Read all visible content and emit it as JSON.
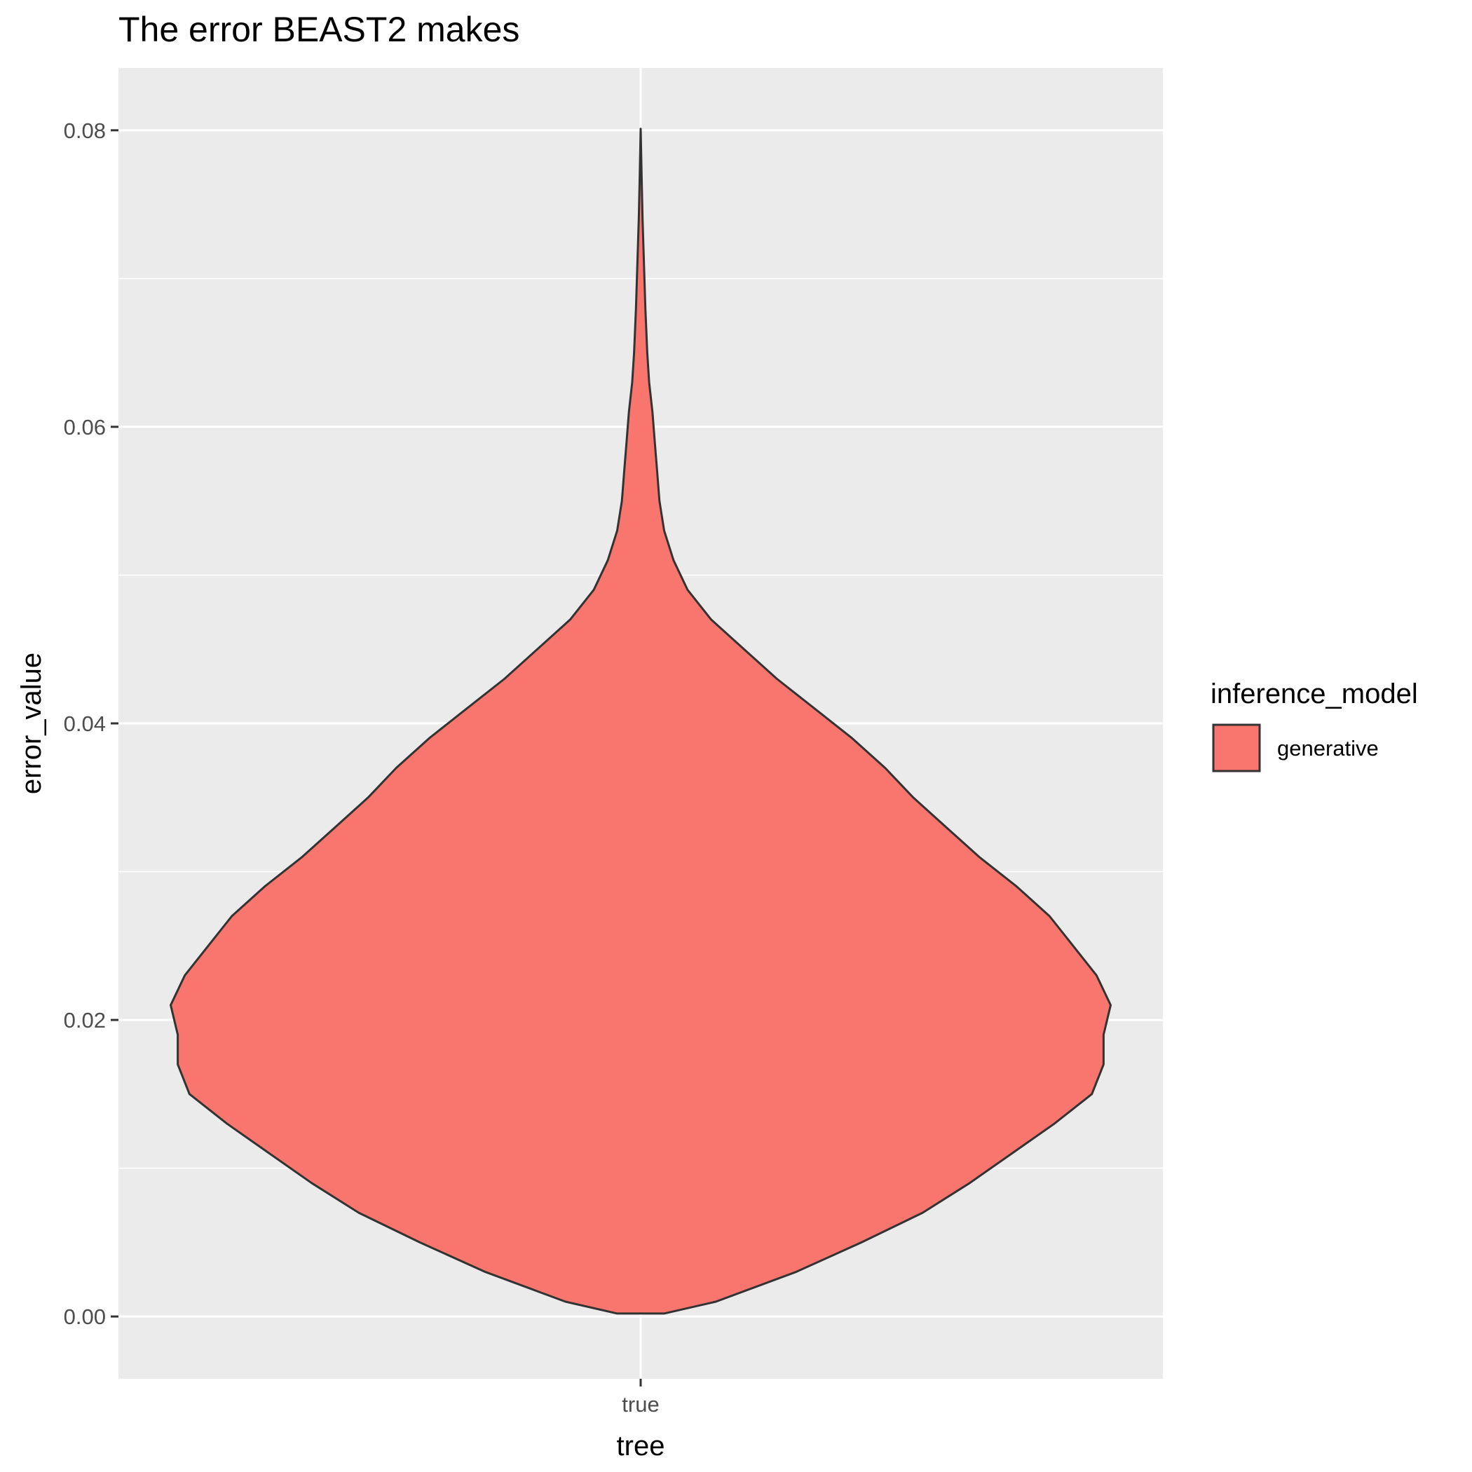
{
  "chart_data": {
    "type": "violin",
    "title": "The error BEAST2 makes",
    "xlabel": "tree",
    "ylabel": "error_value",
    "categories": [
      "true"
    ],
    "ylim": [
      -0.0042,
      0.0842
    ],
    "y_ticks": [
      0.0,
      0.02,
      0.04,
      0.06,
      0.08
    ],
    "y_tick_labels": [
      "0.00",
      "0.02",
      "0.04",
      "0.06",
      "0.08"
    ],
    "grid": true,
    "legend": {
      "title": "inference_model",
      "position": "right",
      "entries": [
        {
          "label": "generative",
          "color": "#F8766D"
        }
      ]
    },
    "series": [
      {
        "name": "generative",
        "category": "true",
        "color": "#F8766D",
        "y_min": 0.0002,
        "y_max": 0.0801,
        "density_profile": [
          {
            "y": 0.0002,
            "w": 0.05
          },
          {
            "y": 0.001,
            "w": 0.16
          },
          {
            "y": 0.003,
            "w": 0.33
          },
          {
            "y": 0.005,
            "w": 0.47
          },
          {
            "y": 0.007,
            "w": 0.6
          },
          {
            "y": 0.009,
            "w": 0.7
          },
          {
            "y": 0.011,
            "w": 0.79
          },
          {
            "y": 0.013,
            "w": 0.88
          },
          {
            "y": 0.015,
            "w": 0.96
          },
          {
            "y": 0.017,
            "w": 0.985
          },
          {
            "y": 0.019,
            "w": 0.985
          },
          {
            "y": 0.021,
            "w": 1.0
          },
          {
            "y": 0.023,
            "w": 0.97
          },
          {
            "y": 0.025,
            "w": 0.92
          },
          {
            "y": 0.027,
            "w": 0.87
          },
          {
            "y": 0.029,
            "w": 0.8
          },
          {
            "y": 0.031,
            "w": 0.72
          },
          {
            "y": 0.033,
            "w": 0.65
          },
          {
            "y": 0.035,
            "w": 0.58
          },
          {
            "y": 0.037,
            "w": 0.52
          },
          {
            "y": 0.039,
            "w": 0.45
          },
          {
            "y": 0.041,
            "w": 0.37
          },
          {
            "y": 0.043,
            "w": 0.29
          },
          {
            "y": 0.045,
            "w": 0.22
          },
          {
            "y": 0.047,
            "w": 0.15
          },
          {
            "y": 0.049,
            "w": 0.1
          },
          {
            "y": 0.051,
            "w": 0.07
          },
          {
            "y": 0.053,
            "w": 0.05
          },
          {
            "y": 0.055,
            "w": 0.04
          },
          {
            "y": 0.057,
            "w": 0.035
          },
          {
            "y": 0.059,
            "w": 0.03
          },
          {
            "y": 0.061,
            "w": 0.025
          },
          {
            "y": 0.063,
            "w": 0.018
          },
          {
            "y": 0.065,
            "w": 0.014
          },
          {
            "y": 0.068,
            "w": 0.01
          },
          {
            "y": 0.071,
            "w": 0.007
          },
          {
            "y": 0.074,
            "w": 0.004
          },
          {
            "y": 0.077,
            "w": 0.002
          },
          {
            "y": 0.0801,
            "w": 0.0
          }
        ]
      }
    ]
  }
}
